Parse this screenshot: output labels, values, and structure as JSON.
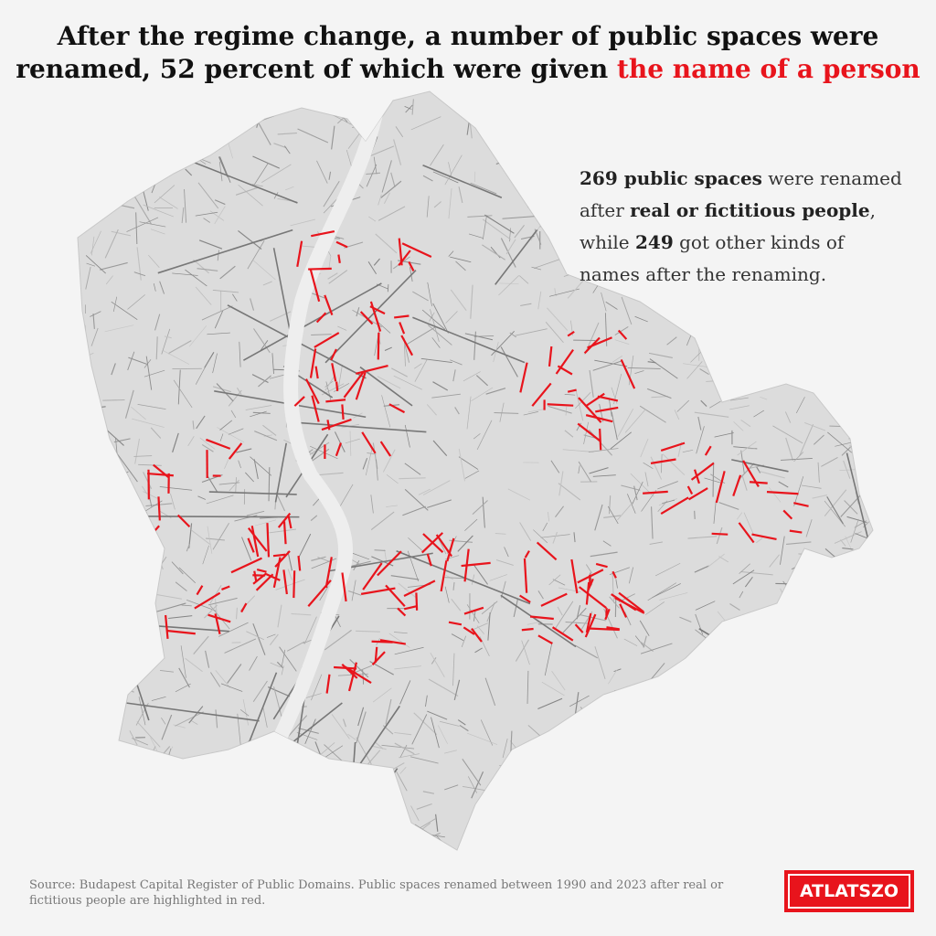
{
  "title": {
    "line1": "After the regime change, a number of public spaces were",
    "line2": "renamed, 52 percent of which were given ",
    "highlight": "the name of a person"
  },
  "annotation": {
    "bold1": "269 public spaces",
    "text1": " were renamed after ",
    "highlight": "real or fictitious people",
    "text2": ", while ",
    "bold2": "249",
    "text3": " got other kinds of names after the renaming."
  },
  "source": "Source: Budapest Capital Register of Public Domains. Public spaces renamed between 1990 and 2023 after real or fictitious people are highlighted in red.",
  "logo": "ATLATSZO"
}
